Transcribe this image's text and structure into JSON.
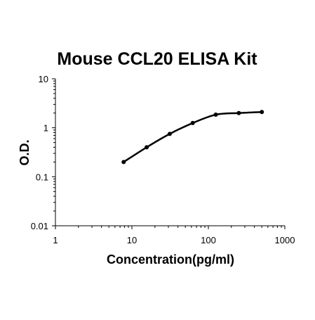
{
  "chart_data": {
    "type": "line",
    "title": "Mouse CCL20 ELISA Kit",
    "xlabel": "Concentration(pg/ml)",
    "ylabel": "O.D.",
    "x_scale": "log",
    "y_scale": "log",
    "xlim": [
      1,
      1000
    ],
    "ylim": [
      0.01,
      10
    ],
    "x_ticks": [
      "1",
      "10",
      "100",
      "1000"
    ],
    "y_ticks": [
      "10",
      "1",
      "0.1",
      "0.01"
    ],
    "grid": false,
    "legend": false,
    "series": [
      {
        "x": [
          7.8,
          15.6,
          31.25,
          62.5,
          125,
          250,
          500
        ],
        "y": [
          0.2,
          0.4,
          0.75,
          1.25,
          1.85,
          2.0,
          2.1
        ]
      }
    ]
  }
}
